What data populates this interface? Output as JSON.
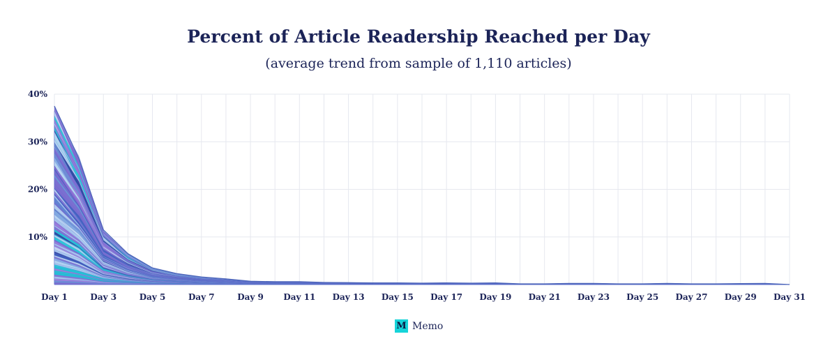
{
  "brand": {
    "name": "Memo",
    "logo_letter": "M"
  },
  "chart_data": {
    "type": "area",
    "title": "Percent of Article Readership Reached per Day",
    "subtitle": "(average trend from sample of 1,110 articles)",
    "xlabel": "",
    "ylabel": "",
    "ylim": [
      0,
      40
    ],
    "yticks": [
      "10%",
      "20%",
      "30%",
      "40%"
    ],
    "ytick_values": [
      10,
      20,
      30,
      40
    ],
    "categories": [
      "Day 1",
      "Day 2",
      "Day 3",
      "Day 4",
      "Day 5",
      "Day 6",
      "Day 7",
      "Day 8",
      "Day 9",
      "Day 10",
      "Day 11",
      "Day 12",
      "Day 13",
      "Day 14",
      "Day 15",
      "Day 16",
      "Day 17",
      "Day 18",
      "Day 19",
      "Day 20",
      "Day 21",
      "Day 22",
      "Day 23",
      "Day 24",
      "Day 25",
      "Day 26",
      "Day 27",
      "Day 28",
      "Day 29",
      "Day 30",
      "Day 31"
    ],
    "xtick_labels": [
      "Day 1",
      "Day 3",
      "Day 5",
      "Day 7",
      "Day 9",
      "Day 11",
      "Day 13",
      "Day 15",
      "Day 17",
      "Day 19",
      "Day 21",
      "Day 23",
      "Day 25",
      "Day 27",
      "Day 29",
      "Day 31"
    ],
    "grid": true,
    "legend": "none",
    "envelope": [
      37.5,
      26.5,
      11.5,
      6.5,
      3.5,
      2.3,
      1.6,
      1.2,
      0.7,
      0.6,
      0.6,
      0.45,
      0.4,
      0.35,
      0.35,
      0.3,
      0.35,
      0.3,
      0.35,
      0.15,
      0.15,
      0.25,
      0.25,
      0.15,
      0.15,
      0.25,
      0.15,
      0.15,
      0.2,
      0.25,
      0.0
    ],
    "series_count": 1110,
    "colors": [
      "#6c8fd6",
      "#8ab4e8",
      "#b6d5f2",
      "#7c6cd0",
      "#5a7bd0",
      "#a8c8ef",
      "#9c7ddc",
      "#3f5fc0",
      "#1ec6d6",
      "#2c3f9e",
      "#c7dcf5",
      "#8f6fd6"
    ],
    "grid_color": "#e6e8ef",
    "text_color": "#1b2357"
  }
}
